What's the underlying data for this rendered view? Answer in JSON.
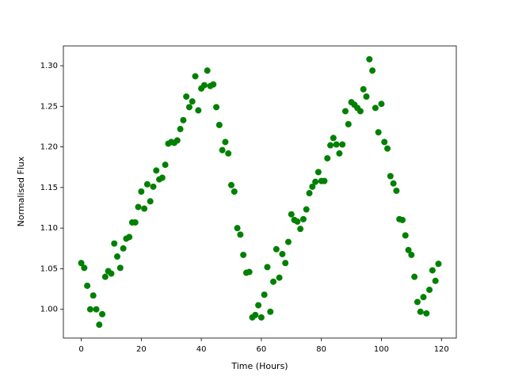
{
  "chart_data": {
    "type": "scatter",
    "xlabel": "Time (Hours)",
    "ylabel": "Normalised Flux",
    "color": "green",
    "x": [
      0,
      1,
      2,
      3,
      4,
      5,
      6,
      7,
      8,
      9,
      10,
      11,
      12,
      13,
      14,
      15,
      16,
      17,
      18,
      19,
      20,
      21,
      22,
      23,
      24,
      25,
      26,
      27,
      28,
      29,
      30,
      31,
      32,
      33,
      34,
      35,
      36,
      37,
      38,
      39,
      40,
      41,
      42,
      43,
      44,
      45,
      46,
      47,
      48,
      49,
      50,
      51,
      52,
      53,
      54,
      55,
      56,
      57,
      58,
      59,
      60,
      61,
      62,
      63,
      64,
      65,
      66,
      67,
      68,
      69,
      70,
      71,
      72,
      73,
      74,
      75,
      76,
      77,
      78,
      79,
      80,
      81,
      82,
      83,
      84,
      85,
      86,
      87,
      88,
      89,
      90,
      91,
      92,
      93,
      94,
      95,
      96,
      97,
      98,
      99,
      100,
      101,
      102,
      103,
      104,
      105,
      106,
      107,
      108,
      109,
      110,
      111,
      112,
      113,
      114,
      115,
      116,
      117,
      118,
      119
    ],
    "values": [
      1.057,
      1.051,
      1.029,
      1.0,
      1.017,
      1.0,
      0.981,
      0.994,
      1.04,
      1.047,
      1.044,
      1.081,
      1.065,
      1.051,
      1.075,
      1.087,
      1.089,
      1.107,
      1.107,
      1.126,
      1.145,
      1.124,
      1.154,
      1.133,
      1.151,
      1.171,
      1.16,
      1.162,
      1.178,
      1.204,
      1.206,
      1.205,
      1.208,
      1.222,
      1.233,
      1.262,
      1.249,
      1.256,
      1.287,
      1.245,
      1.272,
      1.276,
      1.294,
      1.275,
      1.277,
      1.249,
      1.227,
      1.196,
      1.206,
      1.192,
      1.153,
      1.145,
      1.1,
      1.092,
      1.067,
      1.045,
      1.046,
      0.99,
      0.993,
      1.005,
      0.99,
      1.018,
      1.052,
      0.997,
      1.034,
      1.074,
      1.039,
      1.068,
      1.057,
      1.083,
      1.117,
      1.11,
      1.108,
      1.099,
      1.111,
      1.123,
      1.143,
      1.151,
      1.157,
      1.169,
      1.158,
      1.158,
      1.186,
      1.202,
      1.211,
      1.203,
      1.192,
      1.203,
      1.244,
      1.228,
      1.255,
      1.252,
      1.248,
      1.244,
      1.271,
      1.262,
      1.308,
      1.294,
      1.248,
      1.218,
      1.253,
      1.206,
      1.198,
      1.164,
      1.155,
      1.146,
      1.111,
      1.11,
      1.091,
      1.073,
      1.067,
      1.04,
      1.009,
      0.997,
      1.015,
      0.995,
      1.024,
      1.048,
      1.035,
      1.056
    ],
    "xlim": [
      -5.95,
      124.95
    ],
    "ylim": [
      0.9646,
      1.3244
    ],
    "xticks": [
      0,
      20,
      40,
      60,
      80,
      100,
      120
    ],
    "yticks": [
      {
        "value": 1.0,
        "label": "1.00"
      },
      {
        "value": 1.05,
        "label": "1.05"
      },
      {
        "value": 1.1,
        "label": "1.10"
      },
      {
        "value": 1.15,
        "label": "1.15"
      },
      {
        "value": 1.2,
        "label": "1.20"
      },
      {
        "value": 1.25,
        "label": "1.25"
      },
      {
        "value": 1.3,
        "label": "1.30"
      }
    ],
    "grid": false
  }
}
